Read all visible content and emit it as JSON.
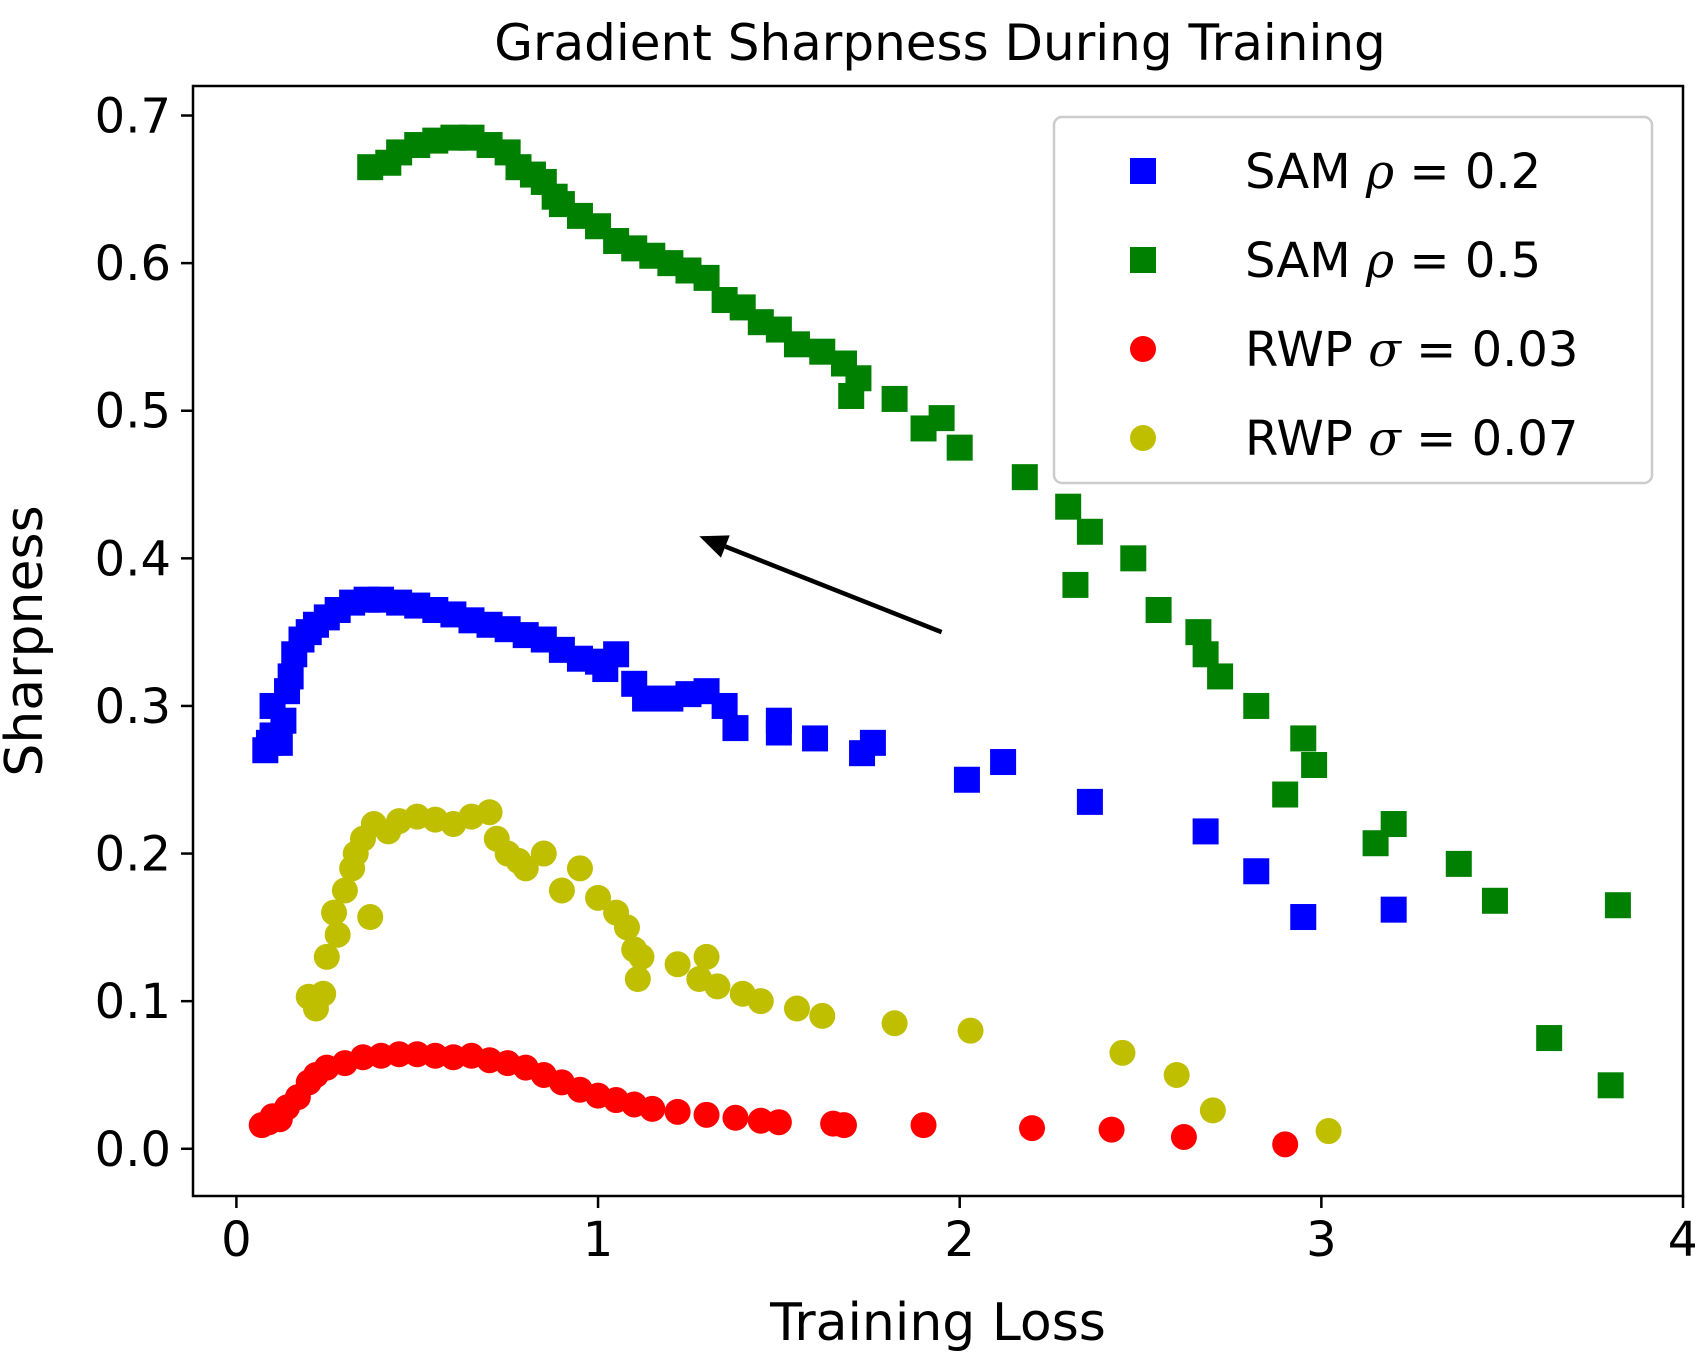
{
  "chart_data": {
    "type": "scatter",
    "title": "Gradient Sharpness During Training",
    "xlabel": "Training Loss",
    "ylabel": "Sharpness",
    "xlim": [
      -0.12,
      4.0
    ],
    "ylim": [
      -0.032,
      0.72
    ],
    "xticks": [
      0,
      1,
      2,
      3,
      4
    ],
    "xtick_labels": [
      "0",
      "1",
      "2",
      "3",
      "4"
    ],
    "yticks": [
      0.0,
      0.1,
      0.2,
      0.3,
      0.4,
      0.5,
      0.6,
      0.7
    ],
    "ytick_labels": [
      "0.0",
      "0.1",
      "0.2",
      "0.3",
      "0.4",
      "0.5",
      "0.6",
      "0.7"
    ],
    "legend_position": "upper-right",
    "annotation": {
      "type": "arrow",
      "from": [
        1.95,
        0.35
      ],
      "to": [
        1.28,
        0.415
      ]
    },
    "series": [
      {
        "name": "SAM ρ = 0.2",
        "legend_prefix": "SAM ",
        "legend_symbol": "ρ",
        "legend_value": " = 0.2",
        "marker": "square",
        "color": "#0000ff",
        "points": [
          [
            0.08,
            0.27
          ],
          [
            0.09,
            0.275
          ],
          [
            0.1,
            0.28
          ],
          [
            0.1,
            0.3
          ],
          [
            0.12,
            0.275
          ],
          [
            0.13,
            0.29
          ],
          [
            0.14,
            0.31
          ],
          [
            0.15,
            0.32
          ],
          [
            0.16,
            0.335
          ],
          [
            0.18,
            0.345
          ],
          [
            0.2,
            0.35
          ],
          [
            0.22,
            0.355
          ],
          [
            0.25,
            0.36
          ],
          [
            0.28,
            0.365
          ],
          [
            0.32,
            0.37
          ],
          [
            0.36,
            0.372
          ],
          [
            0.4,
            0.372
          ],
          [
            0.45,
            0.37
          ],
          [
            0.5,
            0.368
          ],
          [
            0.55,
            0.365
          ],
          [
            0.6,
            0.362
          ],
          [
            0.65,
            0.358
          ],
          [
            0.7,
            0.355
          ],
          [
            0.75,
            0.352
          ],
          [
            0.8,
            0.348
          ],
          [
            0.85,
            0.345
          ],
          [
            0.9,
            0.338
          ],
          [
            0.95,
            0.332
          ],
          [
            1.0,
            0.33
          ],
          [
            1.02,
            0.325
          ],
          [
            1.05,
            0.335
          ],
          [
            1.1,
            0.315
          ],
          [
            1.13,
            0.305
          ],
          [
            1.2,
            0.305
          ],
          [
            1.25,
            0.308
          ],
          [
            1.3,
            0.31
          ],
          [
            1.35,
            0.3
          ],
          [
            1.38,
            0.285
          ],
          [
            1.5,
            0.29
          ],
          [
            1.5,
            0.282
          ],
          [
            1.6,
            0.278
          ],
          [
            1.73,
            0.268
          ],
          [
            1.76,
            0.275
          ],
          [
            2.02,
            0.25
          ],
          [
            2.12,
            0.262
          ],
          [
            2.36,
            0.235
          ],
          [
            2.68,
            0.215
          ],
          [
            2.82,
            0.188
          ],
          [
            2.95,
            0.157
          ],
          [
            3.2,
            0.162
          ]
        ]
      },
      {
        "name": "SAM ρ = 0.5",
        "legend_prefix": "SAM ",
        "legend_symbol": "ρ",
        "legend_value": " = 0.5",
        "marker": "square",
        "color": "#008000",
        "points": [
          [
            0.37,
            0.665
          ],
          [
            0.42,
            0.668
          ],
          [
            0.45,
            0.675
          ],
          [
            0.5,
            0.68
          ],
          [
            0.55,
            0.683
          ],
          [
            0.6,
            0.685
          ],
          [
            0.65,
            0.685
          ],
          [
            0.7,
            0.68
          ],
          [
            0.75,
            0.675
          ],
          [
            0.78,
            0.665
          ],
          [
            0.82,
            0.66
          ],
          [
            0.85,
            0.655
          ],
          [
            0.88,
            0.645
          ],
          [
            0.9,
            0.64
          ],
          [
            0.95,
            0.632
          ],
          [
            1.0,
            0.625
          ],
          [
            1.05,
            0.615
          ],
          [
            1.1,
            0.61
          ],
          [
            1.15,
            0.605
          ],
          [
            1.2,
            0.6
          ],
          [
            1.25,
            0.595
          ],
          [
            1.3,
            0.59
          ],
          [
            1.35,
            0.575
          ],
          [
            1.4,
            0.57
          ],
          [
            1.45,
            0.56
          ],
          [
            1.5,
            0.555
          ],
          [
            1.55,
            0.545
          ],
          [
            1.62,
            0.54
          ],
          [
            1.68,
            0.532
          ],
          [
            1.72,
            0.522
          ],
          [
            1.7,
            0.51
          ],
          [
            1.82,
            0.508
          ],
          [
            1.9,
            0.488
          ],
          [
            1.95,
            0.495
          ],
          [
            2.0,
            0.475
          ],
          [
            2.18,
            0.455
          ],
          [
            2.3,
            0.435
          ],
          [
            2.36,
            0.418
          ],
          [
            2.32,
            0.382
          ],
          [
            2.48,
            0.4
          ],
          [
            2.55,
            0.365
          ],
          [
            2.66,
            0.35
          ],
          [
            2.68,
            0.335
          ],
          [
            2.72,
            0.32
          ],
          [
            2.82,
            0.3
          ],
          [
            2.9,
            0.24
          ],
          [
            2.95,
            0.278
          ],
          [
            2.98,
            0.26
          ],
          [
            3.15,
            0.207
          ],
          [
            3.2,
            0.22
          ],
          [
            3.38,
            0.193
          ],
          [
            3.48,
            0.168
          ],
          [
            3.63,
            0.075
          ],
          [
            3.8,
            0.043
          ],
          [
            3.82,
            0.165
          ]
        ]
      },
      {
        "name": "RWP σ = 0.03",
        "legend_prefix": "RWP ",
        "legend_symbol": "σ",
        "legend_value": " = 0.03",
        "marker": "circle",
        "color": "#ff0000",
        "points": [
          [
            0.07,
            0.016
          ],
          [
            0.09,
            0.018
          ],
          [
            0.1,
            0.022
          ],
          [
            0.12,
            0.02
          ],
          [
            0.14,
            0.028
          ],
          [
            0.17,
            0.035
          ],
          [
            0.2,
            0.045
          ],
          [
            0.22,
            0.05
          ],
          [
            0.25,
            0.055
          ],
          [
            0.3,
            0.058
          ],
          [
            0.35,
            0.062
          ],
          [
            0.4,
            0.063
          ],
          [
            0.45,
            0.064
          ],
          [
            0.5,
            0.064
          ],
          [
            0.55,
            0.063
          ],
          [
            0.6,
            0.062
          ],
          [
            0.65,
            0.063
          ],
          [
            0.7,
            0.06
          ],
          [
            0.75,
            0.058
          ],
          [
            0.8,
            0.055
          ],
          [
            0.85,
            0.05
          ],
          [
            0.9,
            0.045
          ],
          [
            0.95,
            0.04
          ],
          [
            1.0,
            0.036
          ],
          [
            1.05,
            0.033
          ],
          [
            1.1,
            0.03
          ],
          [
            1.15,
            0.027
          ],
          [
            1.22,
            0.025
          ],
          [
            1.3,
            0.023
          ],
          [
            1.38,
            0.021
          ],
          [
            1.45,
            0.019
          ],
          [
            1.5,
            0.018
          ],
          [
            1.65,
            0.017
          ],
          [
            1.68,
            0.016
          ],
          [
            1.9,
            0.016
          ],
          [
            2.2,
            0.014
          ],
          [
            2.42,
            0.013
          ],
          [
            2.62,
            0.008
          ],
          [
            2.9,
            0.003
          ]
        ]
      },
      {
        "name": "RWP σ = 0.07",
        "legend_prefix": "RWP ",
        "legend_symbol": "σ",
        "legend_value": " = 0.07",
        "marker": "circle",
        "color": "#bfbf00",
        "points": [
          [
            0.2,
            0.103
          ],
          [
            0.22,
            0.095
          ],
          [
            0.24,
            0.105
          ],
          [
            0.25,
            0.13
          ],
          [
            0.27,
            0.16
          ],
          [
            0.28,
            0.145
          ],
          [
            0.3,
            0.175
          ],
          [
            0.32,
            0.19
          ],
          [
            0.33,
            0.2
          ],
          [
            0.35,
            0.21
          ],
          [
            0.38,
            0.22
          ],
          [
            0.42,
            0.215
          ],
          [
            0.45,
            0.222
          ],
          [
            0.5,
            0.225
          ],
          [
            0.55,
            0.223
          ],
          [
            0.6,
            0.22
          ],
          [
            0.65,
            0.225
          ],
          [
            0.7,
            0.228
          ],
          [
            0.72,
            0.21
          ],
          [
            0.75,
            0.2
          ],
          [
            0.78,
            0.195
          ],
          [
            0.8,
            0.19
          ],
          [
            0.85,
            0.2
          ],
          [
            0.9,
            0.175
          ],
          [
            0.95,
            0.19
          ],
          [
            1.0,
            0.17
          ],
          [
            1.05,
            0.16
          ],
          [
            1.08,
            0.15
          ],
          [
            1.1,
            0.135
          ],
          [
            1.12,
            0.13
          ],
          [
            1.22,
            0.125
          ],
          [
            1.28,
            0.115
          ],
          [
            1.33,
            0.11
          ],
          [
            1.4,
            0.105
          ],
          [
            1.45,
            0.1
          ],
          [
            1.55,
            0.095
          ],
          [
            1.62,
            0.09
          ],
          [
            1.82,
            0.085
          ],
          [
            2.03,
            0.08
          ],
          [
            2.45,
            0.065
          ],
          [
            2.6,
            0.05
          ],
          [
            2.7,
            0.026
          ],
          [
            3.02,
            0.012
          ],
          [
            0.37,
            0.157
          ],
          [
            1.11,
            0.115
          ],
          [
            1.3,
            0.13
          ]
        ]
      }
    ]
  }
}
